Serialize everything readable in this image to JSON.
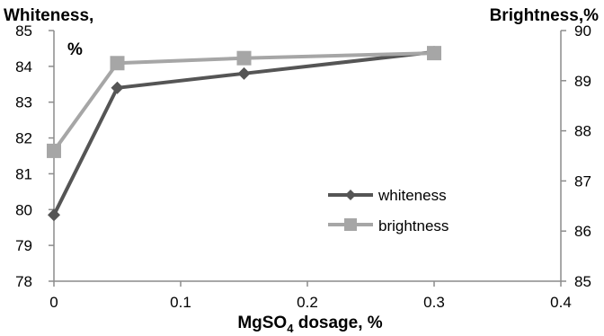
{
  "chart_data": {
    "type": "line",
    "left_axis_title": "Whiteness,",
    "left_axis_unit": "%",
    "right_axis_title": "Brightness,%",
    "xlabel_main": "MgSO",
    "xlabel_sub": "4",
    "xlabel_rest": " dosage, %",
    "x_ticks": [
      "0",
      "0.1",
      "0.2",
      "0.3",
      "0.4"
    ],
    "xlim": [
      0,
      0.4
    ],
    "y_left_ticks": [
      "78",
      "79",
      "80",
      "81",
      "82",
      "83",
      "84",
      "85"
    ],
    "y_left_lim": [
      78,
      85
    ],
    "y_right_ticks": [
      "85",
      "86",
      "87",
      "88",
      "89",
      "90"
    ],
    "y_right_lim": [
      85,
      90
    ],
    "legend_position": "center-right",
    "series": [
      {
        "name": "whiteness",
        "axis": "left",
        "marker": "diamond",
        "color": "#555555",
        "x": [
          0,
          0.05,
          0.15,
          0.3
        ],
        "y": [
          79.85,
          83.4,
          83.8,
          84.4
        ]
      },
      {
        "name": "brightness",
        "axis": "right",
        "marker": "square",
        "color": "#a6a6a6",
        "x": [
          0,
          0.05,
          0.15,
          0.3
        ],
        "y": [
          87.6,
          89.35,
          89.45,
          89.55
        ]
      }
    ]
  }
}
